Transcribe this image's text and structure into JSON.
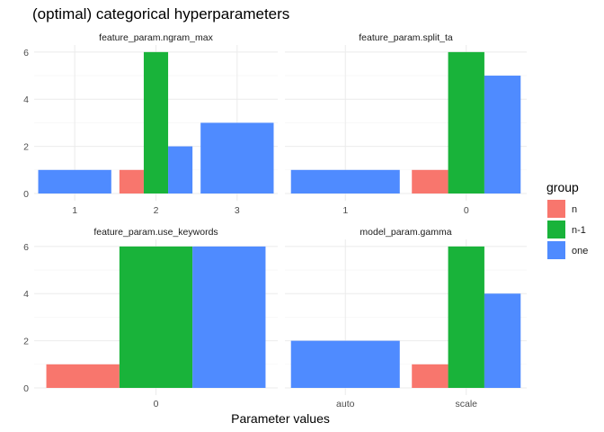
{
  "chart_data": {
    "type": "bar",
    "title": "(optimal) categorical hyperparameters",
    "xlabel": "Parameter values",
    "ylabel": "",
    "ylim": [
      0,
      6.3
    ],
    "yticks": [
      0,
      2,
      4,
      6
    ],
    "legend": {
      "title": "group",
      "position": "right",
      "entries": [
        {
          "name": "n",
          "color": "#F8766D"
        },
        {
          "name": "n-1",
          "color": "#19B33A"
        },
        {
          "name": "one",
          "color": "#4F8BFF"
        }
      ]
    },
    "grid": true,
    "panels": [
      {
        "strip": "feature_param.ngram_max",
        "categories": [
          "1",
          "2",
          "3"
        ],
        "bars": [
          {
            "category": "1",
            "values": {
              "one": 1
            }
          },
          {
            "category": "2",
            "values": {
              "n": 1,
              "n-1": 6,
              "one": 2
            }
          },
          {
            "category": "3",
            "values": {
              "one": 3
            }
          }
        ]
      },
      {
        "strip": "feature_param.split_ta",
        "categories": [
          "1",
          "0"
        ],
        "bars": [
          {
            "category": "1",
            "values": {
              "one": 1
            }
          },
          {
            "category": "0",
            "values": {
              "n": 1,
              "n-1": 6,
              "one": 5
            }
          }
        ]
      },
      {
        "strip": "feature_param.use_keywords",
        "categories": [
          "0"
        ],
        "bars": [
          {
            "category": "0",
            "values": {
              "n": 1,
              "n-1": 6,
              "one": 6
            }
          }
        ]
      },
      {
        "strip": "model_param.gamma",
        "categories": [
          "auto",
          "scale"
        ],
        "bars": [
          {
            "category": "auto",
            "values": {
              "one": 2
            }
          },
          {
            "category": "scale",
            "values": {
              "n": 1,
              "n-1": 6,
              "one": 4
            }
          }
        ]
      }
    ]
  }
}
